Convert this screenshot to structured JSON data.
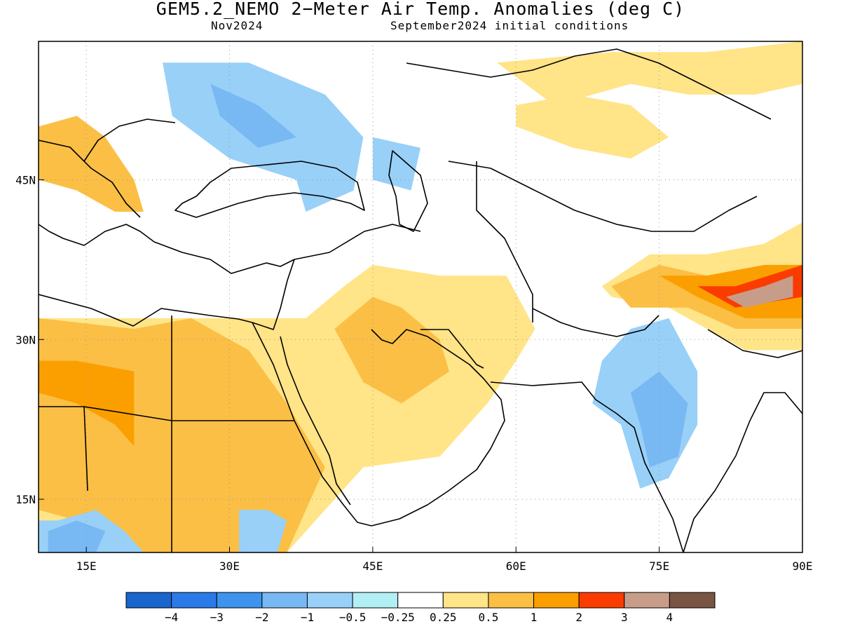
{
  "title": "GEM5.2_NEMO 2−Meter Air Temp. Anomalies (deg C)",
  "subtitle_left": "Nov2024",
  "subtitle_right": "September2024 initial conditions",
  "map": {
    "lon_range": [
      10,
      90
    ],
    "lat_range": [
      10,
      58
    ],
    "x_ticks": [
      "15E",
      "30E",
      "45E",
      "60E",
      "75E",
      "90E"
    ],
    "x_tick_values": [
      15,
      30,
      45,
      60,
      75,
      90
    ],
    "y_ticks": [
      "45N",
      "30N",
      "15N"
    ],
    "y_tick_values": [
      45,
      30,
      15
    ],
    "grid": "dotted"
  },
  "colorbar": {
    "labels": [
      "−4",
      "−3",
      "−2",
      "−1",
      "−0.5",
      "−0.25",
      "0.25",
      "0.5",
      "1",
      "2",
      "3",
      "4"
    ],
    "colors": [
      "#1965cd",
      "#2a7ae8",
      "#3d93ee",
      "#78b8f3",
      "#98d0f8",
      "#b2eff4",
      "#ffffff",
      "#ffe488",
      "#fbbf45",
      "#fb9f00",
      "#fb3c00",
      "#c79d8a",
      "#7a5443"
    ]
  },
  "anomaly_regions": [
    {
      "level": "0.5",
      "color": "#ffe488",
      "polygon": [
        [
          10,
          32
        ],
        [
          38,
          32
        ],
        [
          42,
          35
        ],
        [
          45,
          37
        ],
        [
          52,
          36
        ],
        [
          59,
          36
        ],
        [
          62,
          31
        ],
        [
          60,
          28
        ],
        [
          57,
          24
        ],
        [
          52,
          19
        ],
        [
          44,
          18
        ],
        [
          40,
          14
        ],
        [
          36,
          10
        ],
        [
          10,
          10
        ]
      ]
    },
    {
      "level": "1",
      "color": "#fbbf45",
      "polygon": [
        [
          10,
          32
        ],
        [
          20,
          31
        ],
        [
          26,
          32
        ],
        [
          32,
          29
        ],
        [
          36,
          24
        ],
        [
          40,
          18
        ],
        [
          38,
          14
        ],
        [
          36,
          10
        ],
        [
          16,
          10
        ],
        [
          14,
          13
        ],
        [
          10,
          14
        ]
      ]
    },
    {
      "level": "1",
      "color": "#fbbf45",
      "polygon": [
        [
          41,
          31
        ],
        [
          45,
          34
        ],
        [
          48,
          33
        ],
        [
          52,
          30
        ],
        [
          53,
          27
        ],
        [
          48,
          24
        ],
        [
          44,
          26
        ]
      ]
    },
    {
      "level": "2",
      "color": "#fb9f00",
      "polygon": [
        [
          10,
          25
        ],
        [
          14,
          24
        ],
        [
          18,
          22
        ],
        [
          20,
          20
        ],
        [
          20,
          27
        ],
        [
          14,
          28
        ],
        [
          10,
          28
        ]
      ]
    },
    {
      "level": "-0.5",
      "color": "#98d0f8",
      "polygon": [
        [
          23,
          56
        ],
        [
          32,
          56
        ],
        [
          40,
          53
        ],
        [
          44,
          49
        ],
        [
          43,
          44
        ],
        [
          38,
          42
        ],
        [
          37,
          45
        ],
        [
          30,
          47
        ],
        [
          24,
          51
        ]
      ]
    },
    {
      "level": "-1",
      "color": "#78b8f3",
      "polygon": [
        [
          28,
          54
        ],
        [
          33,
          52
        ],
        [
          37,
          49
        ],
        [
          33,
          48
        ],
        [
          29,
          51
        ]
      ]
    },
    {
      "level": "-0.5",
      "color": "#98d0f8",
      "polygon": [
        [
          45,
          49
        ],
        [
          50,
          48
        ],
        [
          49,
          44
        ],
        [
          45,
          45
        ]
      ]
    },
    {
      "level": "-0.5",
      "color": "#98d0f8",
      "polygon": [
        [
          69,
          28
        ],
        [
          72,
          31
        ],
        [
          76,
          32
        ],
        [
          79,
          27
        ],
        [
          79,
          22
        ],
        [
          76,
          17
        ],
        [
          73,
          16
        ],
        [
          71,
          22
        ],
        [
          68,
          24
        ]
      ]
    },
    {
      "level": "-1",
      "color": "#78b8f3",
      "polygon": [
        [
          72,
          25
        ],
        [
          75,
          27
        ],
        [
          78,
          24
        ],
        [
          77,
          19
        ],
        [
          74,
          18
        ],
        [
          73,
          22
        ]
      ]
    },
    {
      "level": "-0.5",
      "color": "#98d0f8",
      "polygon": [
        [
          10,
          13
        ],
        [
          12,
          13
        ],
        [
          16,
          14
        ],
        [
          19,
          12
        ],
        [
          21,
          10
        ],
        [
          10,
          10
        ]
      ]
    },
    {
      "level": "-1",
      "color": "#78b8f3",
      "polygon": [
        [
          11,
          12
        ],
        [
          14,
          13
        ],
        [
          17,
          12
        ],
        [
          16,
          10
        ],
        [
          11,
          10
        ]
      ]
    },
    {
      "level": "-0.5",
      "color": "#98d0f8",
      "polygon": [
        [
          31,
          14
        ],
        [
          34,
          14
        ],
        [
          36,
          13
        ],
        [
          35,
          10
        ],
        [
          31,
          10
        ]
      ]
    },
    {
      "level": "0.5",
      "color": "#ffe488",
      "polygon": [
        [
          58,
          56
        ],
        [
          70,
          57
        ],
        [
          80,
          57
        ],
        [
          90,
          58
        ],
        [
          90,
          54
        ],
        [
          85,
          53
        ],
        [
          78,
          53
        ],
        [
          72,
          54
        ],
        [
          64,
          52
        ]
      ]
    },
    {
      "level": "0.5",
      "color": "#ffe488",
      "polygon": [
        [
          69,
          35
        ],
        [
          74,
          38
        ],
        [
          80,
          38
        ],
        [
          86,
          39
        ],
        [
          90,
          41
        ],
        [
          90,
          29
        ],
        [
          84,
          29
        ],
        [
          80,
          31
        ],
        [
          76,
          33
        ],
        [
          70,
          34
        ]
      ]
    },
    {
      "level": "1",
      "color": "#fbbf45",
      "polygon": [
        [
          70,
          35
        ],
        [
          75,
          37
        ],
        [
          80,
          36
        ],
        [
          86,
          37
        ],
        [
          90,
          37
        ],
        [
          90,
          31
        ],
        [
          83,
          31
        ],
        [
          78,
          33
        ],
        [
          72,
          33
        ]
      ]
    },
    {
      "level": "2",
      "color": "#fb9f00",
      "polygon": [
        [
          75,
          36
        ],
        [
          80,
          36
        ],
        [
          86,
          37
        ],
        [
          90,
          37
        ],
        [
          90,
          32
        ],
        [
          84,
          32
        ],
        [
          79,
          34
        ]
      ]
    },
    {
      "level": "3",
      "color": "#fb3c00",
      "polygon": [
        [
          79,
          35
        ],
        [
          83,
          35
        ],
        [
          90,
          37
        ],
        [
          90,
          34
        ],
        [
          83,
          33
        ]
      ]
    },
    {
      "level": "4",
      "color": "#c79d8a",
      "polygon": [
        [
          82,
          34
        ],
        [
          86,
          35
        ],
        [
          89,
          36
        ],
        [
          89,
          34
        ],
        [
          84,
          33
        ]
      ]
    },
    {
      "level": "1",
      "color": "#fbbf45",
      "polygon": [
        [
          10,
          50
        ],
        [
          14,
          51
        ],
        [
          17,
          49
        ],
        [
          20,
          45
        ],
        [
          21,
          42
        ],
        [
          18,
          42
        ],
        [
          14,
          44
        ],
        [
          10,
          45
        ]
      ]
    },
    {
      "level": "0.5",
      "color": "#ffe488",
      "polygon": [
        [
          60,
          52
        ],
        [
          66,
          53
        ],
        [
          72,
          52
        ],
        [
          76,
          49
        ],
        [
          72,
          47
        ],
        [
          66,
          48
        ],
        [
          60,
          50
        ]
      ]
    }
  ]
}
